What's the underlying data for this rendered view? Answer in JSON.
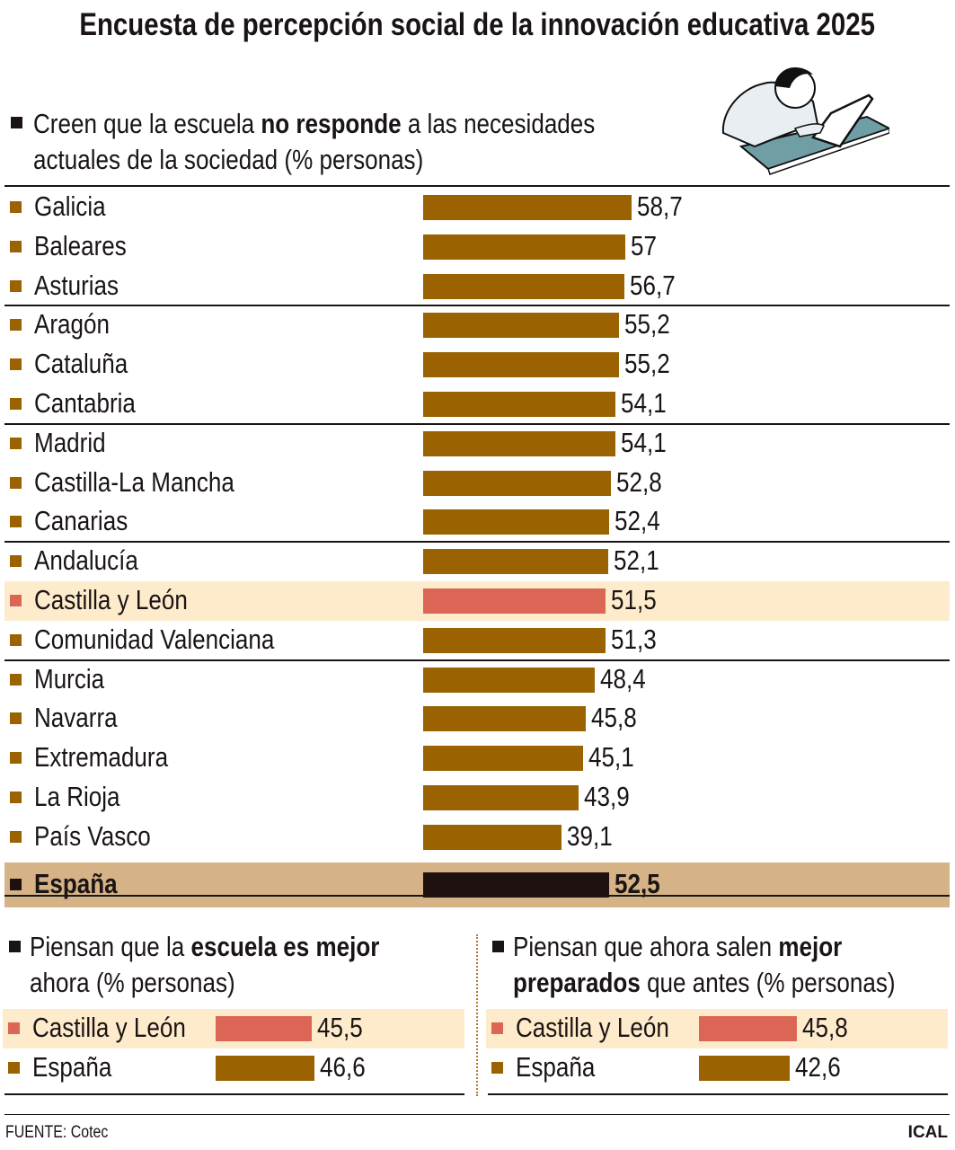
{
  "title": "Encuesta de percepción social de la innovación educativa 2025",
  "colors": {
    "bar": "#9a6200",
    "highlight_bar": "#dc6655",
    "highlight_bg": "#fdebcc",
    "total_bg": "#d6b387",
    "total_bar": "#1f1010",
    "bullet": "#1a1414"
  },
  "illustration": "student-with-laptop",
  "chart_data": [
    {
      "type": "bar",
      "orientation": "horizontal",
      "subtitle": {
        "pre": "Creen que la escuela ",
        "bold": "no responde",
        "post": " a las necesidades",
        "line2": "actuales de la sociedad (% personas)"
      },
      "categories": [
        "Galicia",
        "Baleares",
        "Asturias",
        "Aragón",
        "Cataluña",
        "Cantabria",
        "Madrid",
        "Castilla-La Mancha",
        "Canarias",
        "Andalucía",
        "Castilla y León",
        "Comunidad Valenciana",
        "Murcia",
        "Navarra",
        "Extremadura",
        "La Rioja",
        "País Vasco",
        "España"
      ],
      "values": [
        58.7,
        57,
        56.7,
        55.2,
        55.2,
        54.1,
        54.1,
        52.8,
        52.4,
        52.1,
        51.5,
        51.3,
        48.4,
        45.8,
        45.1,
        43.9,
        39.1,
        52.5
      ],
      "value_labels": [
        "58,7",
        "57",
        "56,7",
        "55,2",
        "55,2",
        "54,1",
        "54,1",
        "52,8",
        "52,4",
        "52,1",
        "51,5",
        "51,3",
        "48,4",
        "45,8",
        "45,1",
        "43,9",
        "39,1",
        "52,5"
      ],
      "highlight": "Castilla y León",
      "total": "España"
    },
    {
      "type": "bar",
      "orientation": "horizontal",
      "subtitle": {
        "pre": "Piensan que la ",
        "bold": "escuela es mejor",
        "post": "",
        "line2": "ahora (% personas)"
      },
      "categories": [
        "Castilla y León",
        "España"
      ],
      "values": [
        45.5,
        46.6
      ],
      "value_labels": [
        "45,5",
        "46,6"
      ],
      "highlight": "Castilla y León"
    },
    {
      "type": "bar",
      "orientation": "horizontal",
      "subtitle": {
        "pre": "Piensan que ahora salen ",
        "bold": "mejor",
        "post": "",
        "line2_bold": "preparados",
        "line2": " que antes (% personas)"
      },
      "categories": [
        "Castilla y León",
        "España"
      ],
      "values": [
        45.8,
        42.6
      ],
      "value_labels": [
        "45,8",
        "42,6"
      ],
      "highlight": "Castilla y León"
    }
  ],
  "footer": {
    "source": "FUENTE: Cotec",
    "credit": "ICAL"
  }
}
